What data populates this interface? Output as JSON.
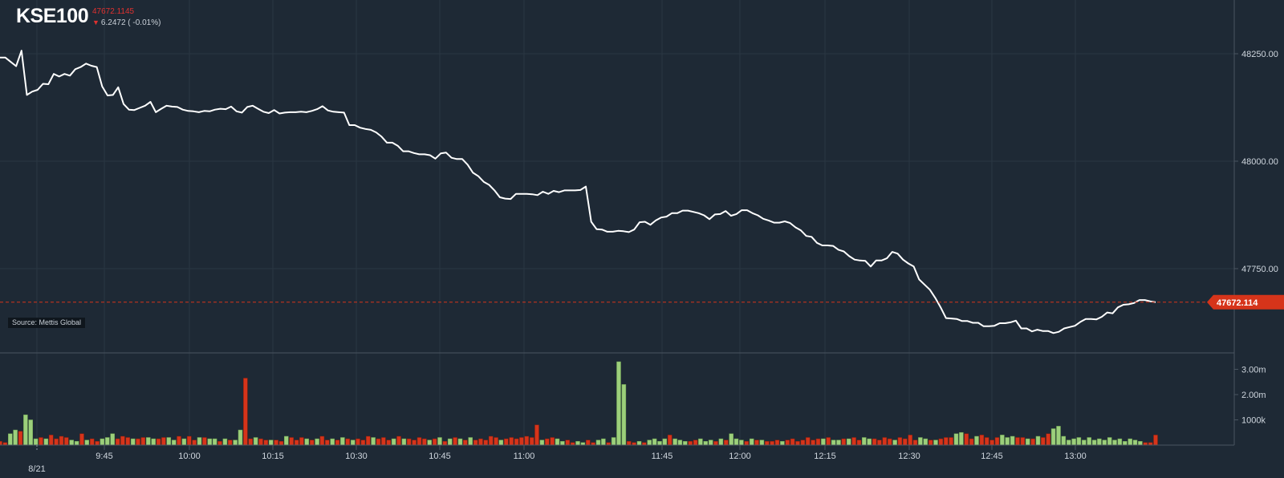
{
  "header": {
    "ticker": "KSE100",
    "last_value": "47672.1145",
    "change_text": "6.2472 ( -0.01%)",
    "direction": "down"
  },
  "source_label": "Source: Mettis Global",
  "colors": {
    "background": "#1e2935",
    "grid": "#2a3642",
    "price_line": "#ffffff",
    "volume_up": "#9ccf7b",
    "volume_down": "#d6341a",
    "last_price_marker": "#d6341a",
    "negative_text": "#e0312f"
  },
  "chart_data": [
    {
      "type": "line",
      "series": [
        {
          "values": [
            48241,
            48241,
            48231,
            48221,
            48257,
            48154,
            48162,
            48166,
            48180,
            48179,
            48203,
            48197,
            48203,
            48199,
            48214,
            48219,
            48227,
            48222,
            48219,
            48174,
            48153,
            48154,
            48172,
            48133,
            48120,
            48119,
            48124,
            48129,
            48138,
            48114,
            48122,
            48129,
            48127,
            48126,
            48120,
            48117,
            48116,
            48114,
            48117,
            48116,
            48120,
            48122,
            48121,
            48127,
            48116,
            48113,
            48126,
            48129,
            48122,
            48115,
            48112,
            48119,
            48111,
            48113,
            48114,
            48114,
            48115,
            48114,
            48117,
            48121,
            48128,
            48118,
            48115,
            48114,
            48113,
            48084,
            48084,
            48078,
            48075,
            48073,
            48067,
            48057,
            48043,
            48043,
            48036,
            48023,
            48023,
            48019,
            48016,
            48016,
            48014,
            48006,
            48018,
            48020,
            48008,
            48005,
            48005,
            47992,
            47973,
            47965,
            47952,
            47945,
            47932,
            47916,
            47913,
            47912,
            47924,
            47924,
            47924,
            47923,
            47921,
            47929,
            47924,
            47931,
            47928,
            47932,
            47932,
            47932,
            47933,
            47941,
            47859,
            47842,
            47841,
            47836,
            47836,
            47838,
            47837,
            47835,
            47841,
            47858,
            47859,
            47852,
            47862,
            47869,
            47871,
            47879,
            47879,
            47885,
            47885,
            47882,
            47879,
            47874,
            47865,
            47876,
            47877,
            47884,
            47873,
            47877,
            47886,
            47886,
            47879,
            47874,
            47866,
            47862,
            47857,
            47857,
            47860,
            47856,
            47846,
            47839,
            47826,
            47824,
            47810,
            47804,
            47804,
            47803,
            47794,
            47790,
            47779,
            47771,
            47769,
            47768,
            47755,
            47769,
            47769,
            47774,
            47789,
            47785,
            47771,
            47762,
            47755,
            47725,
            47713,
            47701,
            47682,
            47660,
            47635,
            47634,
            47633,
            47628,
            47628,
            47624,
            47624,
            47616,
            47616,
            47617,
            47623,
            47623,
            47625,
            47629,
            47611,
            47611,
            47604,
            47608,
            47605,
            47605,
            47600,
            47603,
            47611,
            47614,
            47617,
            47626,
            47633,
            47633,
            47632,
            47638,
            47648,
            47646,
            47660,
            47666,
            47667,
            47670,
            47677,
            47677,
            47674,
            47672
          ]
        }
      ],
      "x_labels": [
        "9:45",
        "10:00",
        "10:15",
        "10:30",
        "10:45",
        "11:00",
        "11:45",
        "12:00",
        "12:15",
        "12:30",
        "12:45",
        "13:00"
      ],
      "date_label": "8/21",
      "y_ticks": [
        47750,
        48000,
        48250
      ],
      "y_tick_labels": [
        "47750.00",
        "48000.00",
        "48250.00"
      ],
      "ylim": [
        47554,
        48375
      ],
      "last_value_label": "47672.114",
      "grid": true
    },
    {
      "type": "bar",
      "series": [
        {
          "values": [
            0.15,
            0.1,
            0.45,
            0.6,
            0.55,
            1.2,
            1.0,
            0.25,
            0.3,
            0.25,
            0.4,
            0.25,
            0.35,
            0.3,
            0.2,
            0.15,
            0.45,
            0.2,
            0.25,
            0.15,
            0.25,
            0.3,
            0.45,
            0.25,
            0.35,
            0.3,
            0.25,
            0.25,
            0.3,
            0.3,
            0.25,
            0.25,
            0.3,
            0.3,
            0.2,
            0.35,
            0.25,
            0.35,
            0.2,
            0.3,
            0.3,
            0.25,
            0.25,
            0.15,
            0.25,
            0.2,
            0.2,
            0.6,
            2.65,
            0.25,
            0.3,
            0.25,
            0.2,
            0.2,
            0.2,
            0.15,
            0.35,
            0.3,
            0.2,
            0.3,
            0.25,
            0.2,
            0.25,
            0.35,
            0.2,
            0.25,
            0.2,
            0.3,
            0.25,
            0.2,
            0.25,
            0.2,
            0.35,
            0.3,
            0.25,
            0.3,
            0.2,
            0.25,
            0.35,
            0.25,
            0.25,
            0.2,
            0.3,
            0.25,
            0.2,
            0.25,
            0.3,
            0.15,
            0.25,
            0.3,
            0.25,
            0.2,
            0.3,
            0.2,
            0.25,
            0.2,
            0.35,
            0.3,
            0.2,
            0.25,
            0.3,
            0.25,
            0.3,
            0.35,
            0.3,
            0.8,
            0.2,
            0.25,
            0.3,
            0.25,
            0.15,
            0.2,
            0.1,
            0.15,
            0.1,
            0.2,
            0.1,
            0.2,
            0.25,
            0.1,
            0.3,
            3.3,
            2.4,
            0.15,
            0.1,
            0.15,
            0.1,
            0.2,
            0.25,
            0.15,
            0.25,
            0.4,
            0.25,
            0.2,
            0.15,
            0.15,
            0.2,
            0.25,
            0.15,
            0.2,
            0.15,
            0.25,
            0.2,
            0.45,
            0.25,
            0.2,
            0.15,
            0.25,
            0.2,
            0.2,
            0.15,
            0.15,
            0.2,
            0.15,
            0.2,
            0.25,
            0.15,
            0.2,
            0.3,
            0.2,
            0.25,
            0.25,
            0.3,
            0.2,
            0.2,
            0.25,
            0.25,
            0.3,
            0.2,
            0.3,
            0.25,
            0.25,
            0.2,
            0.3,
            0.25,
            0.2,
            0.3,
            0.25,
            0.4,
            0.2,
            0.3,
            0.25,
            0.2,
            0.2,
            0.25,
            0.3,
            0.3,
            0.45,
            0.5,
            0.45,
            0.25,
            0.35,
            0.4,
            0.3,
            0.2,
            0.3,
            0.4,
            0.3,
            0.35,
            0.3,
            0.3,
            0.25,
            0.25,
            0.35,
            0.3,
            0.45,
            0.65,
            0.75,
            0.35,
            0.2,
            0.25,
            0.3,
            0.2,
            0.3,
            0.2,
            0.25,
            0.2,
            0.3,
            0.2,
            0.25,
            0.15,
            0.25,
            0.2,
            0.15,
            0.1,
            0.1,
            0.4
          ],
          "directions": "DDUUDUUUDUDDDDUUDUDDUUUDDDUDDUUDDUUDUDDUDUUDUDUUDDUDDUDDUDDDUDUDDUDUDUDDDUDDDUDUDDDDUDUDUDUDUDDDDDUDDDDDDDUDDUUDDUUDDUUDUUUDDUDUUUUDUUUDDUUUDUDUUUDUDUDDDUDDDDDDDUDUUDUDDUUDDDDUDDDDUUDUDDDUUDDUDDDDUUUDDUDUDDUUUUUUUUUUUUUUUUUUDDDDUDDUDU"
        }
      ],
      "y_ticks": [
        1.0,
        2.0,
        3.0
      ],
      "y_tick_labels": [
        "1000k",
        "2.00m",
        "3.00m"
      ],
      "ylim": [
        0,
        3.65
      ]
    }
  ]
}
